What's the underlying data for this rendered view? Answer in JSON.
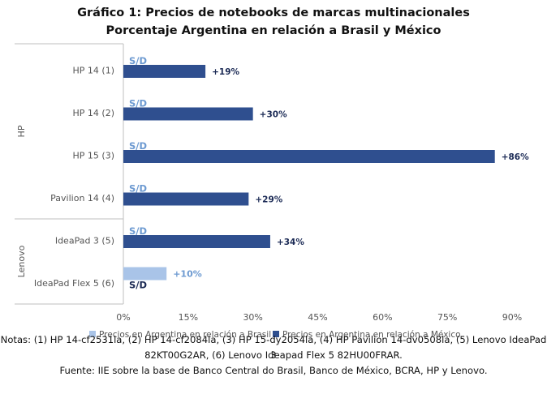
{
  "chart_data": {
    "type": "bar",
    "orientation": "horizontal",
    "title": "Gráfico 1: Precios de notebooks de marcas multinacionales",
    "subtitle": "Porcentaje Argentina en relación a Brasil y México",
    "groups": [
      {
        "name": "HP",
        "categories": [
          "HP 14 (1)",
          "HP 14 (2)",
          "HP 15 (3)",
          "Pavilion 14 (4)"
        ]
      },
      {
        "name": "Lenovo",
        "categories": [
          "IdeaPad 3 (5)",
          "IdeaPad Flex 5 (6)"
        ]
      }
    ],
    "categories": [
      "HP 14 (1)",
      "HP 14 (2)",
      "HP 15 (3)",
      "Pavilion 14 (4)",
      "IdeaPad 3 (5)",
      "IdeaPad Flex 5 (6)"
    ],
    "series": [
      {
        "name": "Precios en Argentina en relación a Brasil",
        "color": "#a9c4e8",
        "label_color": "#6d9ad1",
        "values": [
          null,
          null,
          null,
          null,
          null,
          10
        ],
        "labels": [
          "S/D",
          "S/D",
          "S/D",
          "S/D",
          "S/D",
          "+10%"
        ]
      },
      {
        "name": "Precios en Argentina en relación a México",
        "color": "#2f4f8f",
        "label_color": "#1b2a55",
        "values": [
          19,
          30,
          86,
          29,
          34,
          null
        ],
        "labels": [
          "+19%",
          "+30%",
          "+86%",
          "+29%",
          "+34%",
          "S/D"
        ]
      }
    ],
    "xlim": [
      0,
      90
    ],
    "xticks": [
      "0%",
      "15%",
      "30%",
      "45%",
      "60%",
      "75%",
      "90%"
    ],
    "xtick_values": [
      0,
      15,
      30,
      45,
      60,
      75,
      90
    ],
    "legend_position": "bottom",
    "grid": false
  },
  "notes_line1": "Notas: (1) HP 14-cf2531la, (2) HP 14-cf2084la, (3) HP 15-dy2054la, (4) HP Pavilion 14-dv0508la, (5) Lenovo IdeaPad 3",
  "notes_line2": "82KT00G2AR, (6) Lenovo Ideapad Flex 5 82HU00FRAR.",
  "source": "Fuente: IIE sobre la base de Banco Central do Brasil, Banco de México, BCRA, HP y Lenovo."
}
